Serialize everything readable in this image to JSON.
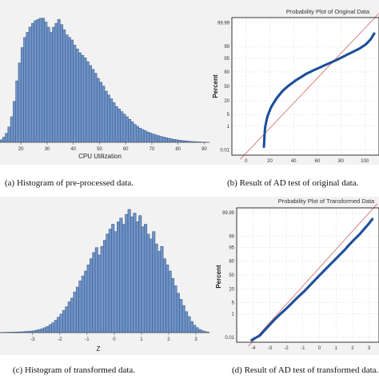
{
  "chart_data": [
    {
      "id": "a",
      "type": "bar",
      "caption": "(a) Histogram of pre-processed data.",
      "xlabel": "CPU Utilization",
      "ylabel": "",
      "xticks": [
        20,
        30,
        40,
        50,
        60,
        70,
        80,
        90
      ],
      "xlim": [
        12,
        92
      ],
      "bin_width": 1,
      "bin_start": 12,
      "values": [
        2,
        4,
        7,
        12,
        20,
        32,
        48,
        62,
        74,
        82,
        86,
        90,
        93,
        95,
        96,
        97,
        97,
        94,
        90,
        86,
        90,
        93,
        96,
        92,
        88,
        84,
        82,
        80,
        76,
        73,
        70,
        68,
        66,
        63,
        60,
        57,
        54,
        50,
        47,
        44,
        40,
        37,
        34,
        31,
        28,
        26,
        24,
        22,
        20,
        18,
        16,
        14,
        12.5,
        11,
        10,
        9,
        8,
        7.2,
        6.5,
        5.8,
        5.2,
        4.6,
        4.1,
        3.6,
        3.1,
        2.7,
        2.3,
        2,
        1.7,
        1.4,
        1.2,
        1,
        0.8,
        0.6,
        0.5,
        0.4,
        0.3,
        0.2,
        0.15,
        0.1
      ],
      "ylim": [
        0,
        100
      ],
      "grid": false
    },
    {
      "id": "b",
      "type": "scatter",
      "title": "Probability Plot of Original Data",
      "caption": "(b) Result of AD test of original data.",
      "xlabel": "",
      "ylabel": "Percent",
      "xticks": [
        0,
        20,
        40,
        60,
        80,
        100
      ],
      "xlim": [
        -12,
        112
      ],
      "yscale": "normal-probability",
      "yticks": [
        0.01,
        1,
        5,
        20,
        50,
        80,
        95,
        99,
        99.99
      ],
      "ytick_labels": [
        "0.01",
        "1",
        "5",
        "20",
        "50",
        "80",
        "95",
        "99",
        "99.99"
      ],
      "grid": true,
      "reference_line": {
        "x0": -5,
        "y0": 0.001,
        "x1": 112,
        "y1": 99.999
      },
      "points": [
        [
          15,
          0.02
        ],
        [
          15.5,
          0.2
        ],
        [
          16,
          0.8
        ],
        [
          17,
          2
        ],
        [
          18,
          4
        ],
        [
          19.5,
          7
        ],
        [
          21,
          11
        ],
        [
          23,
          16
        ],
        [
          25,
          22
        ],
        [
          27,
          28
        ],
        [
          29,
          34
        ],
        [
          31,
          40
        ],
        [
          33,
          45
        ],
        [
          36,
          52
        ],
        [
          39,
          58
        ],
        [
          42,
          64
        ],
        [
          46,
          70
        ],
        [
          50,
          76
        ],
        [
          55,
          81
        ],
        [
          60,
          85
        ],
        [
          66,
          89
        ],
        [
          72,
          92
        ],
        [
          78,
          94.5
        ],
        [
          84,
          96.5
        ],
        [
          90,
          97.8
        ],
        [
          96,
          98.7
        ],
        [
          101,
          99.3
        ],
        [
          105,
          99.7
        ],
        [
          108,
          99.9
        ]
      ]
    },
    {
      "id": "c",
      "type": "bar",
      "caption": "(c) Histogram of transformed data.",
      "xlabel": "Z",
      "ylabel": "",
      "xticks": [
        -3,
        -2,
        -1,
        0,
        1,
        2,
        3
      ],
      "xtick_labels": [
        "-3",
        "-2",
        "-1",
        "0",
        "1",
        "2",
        "3"
      ],
      "xlim": [
        -4.2,
        3.5
      ],
      "bin_width": 0.1,
      "bin_start": -4.2,
      "values": [
        0.2,
        0.2,
        0.3,
        0.3,
        0.4,
        0.4,
        0.5,
        0.6,
        0.7,
        0.9,
        1,
        1.2,
        1.5,
        2,
        2.5,
        3.2,
        4,
        5,
        6.5,
        8,
        10,
        12.5,
        15,
        18,
        21,
        25,
        28,
        33,
        37,
        42,
        46,
        50,
        55,
        60,
        65,
        69,
        63,
        70,
        75,
        80,
        84,
        88,
        82,
        90,
        93,
        88,
        96,
        100,
        94,
        97,
        90,
        95,
        86,
        88,
        80,
        76,
        82,
        72,
        66,
        70,
        60,
        55,
        50,
        44,
        38,
        32,
        27,
        22,
        17,
        13,
        9,
        6,
        4,
        2.5,
        1.5,
        0.8,
        0.4
      ],
      "ylim": [
        0,
        100
      ],
      "grid": false
    },
    {
      "id": "d",
      "type": "scatter",
      "title": "Probability Plot of Transformed Data",
      "caption": "(d) Result of AD test of transformed data.",
      "xlabel": "",
      "ylabel": "Percent",
      "xticks": [
        -4,
        -3,
        -2,
        -1,
        0,
        1,
        2,
        3
      ],
      "xtick_labels": [
        "-4",
        "-3",
        "-2",
        "-1",
        "0",
        "1",
        "2",
        "3"
      ],
      "xlim": [
        -5,
        3.6
      ],
      "yscale": "normal-probability",
      "yticks": [
        0.01,
        1,
        5,
        20,
        50,
        80,
        95,
        99,
        99.99
      ],
      "ytick_labels": [
        "0.01",
        "1",
        "5",
        "20",
        "50",
        "80",
        "95",
        "99",
        "99.99"
      ],
      "grid": true,
      "reference_line": {
        "x0": -4.3,
        "y0": 0.001,
        "x1": 3.5,
        "y1": 99.999
      },
      "points": [
        [
          -4.1,
          0.005
        ],
        [
          -3.6,
          0.015
        ],
        [
          -3.3,
          0.05
        ],
        [
          -3,
          0.15
        ],
        [
          -2.7,
          0.4
        ],
        [
          -2.4,
          0.9
        ],
        [
          -2.1,
          1.8
        ],
        [
          -1.8,
          3.5
        ],
        [
          -1.5,
          6.5
        ],
        [
          -1.2,
          11
        ],
        [
          -0.9,
          17
        ],
        [
          -0.6,
          26
        ],
        [
          -0.3,
          37
        ],
        [
          0,
          49
        ],
        [
          0.3,
          61
        ],
        [
          0.6,
          72
        ],
        [
          0.9,
          81
        ],
        [
          1.2,
          88
        ],
        [
          1.5,
          93
        ],
        [
          1.8,
          96.5
        ],
        [
          2.1,
          98.3
        ],
        [
          2.4,
          99.2
        ],
        [
          2.7,
          99.7
        ],
        [
          3,
          99.9
        ],
        [
          3.2,
          99.96
        ]
      ]
    }
  ]
}
